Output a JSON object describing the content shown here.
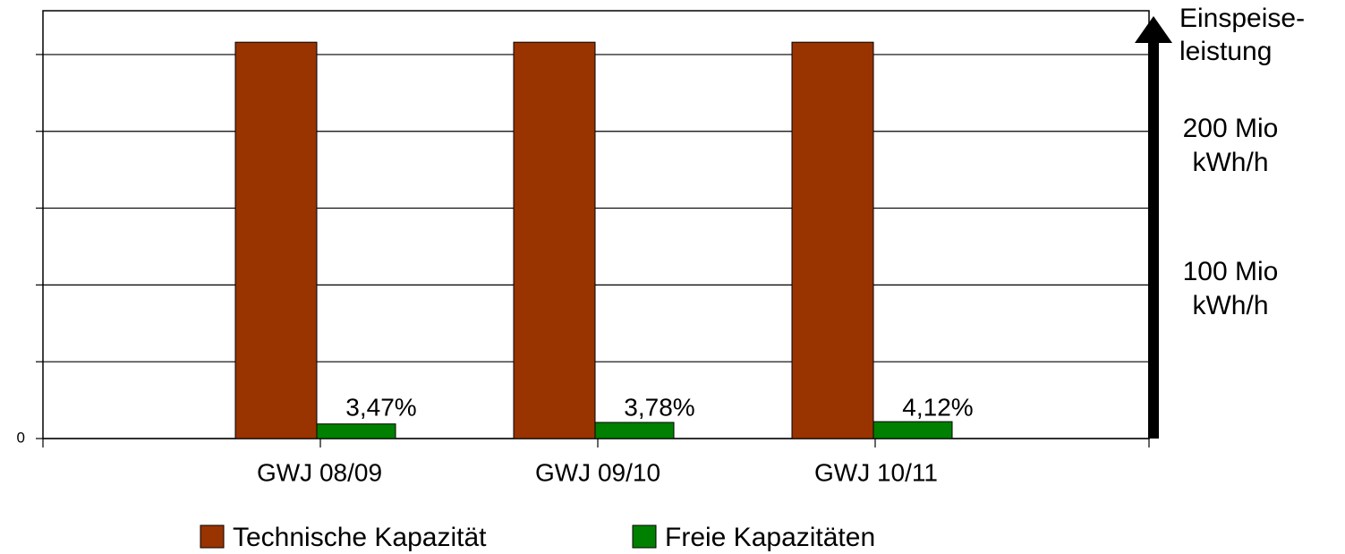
{
  "chart_data": {
    "type": "bar",
    "categories": [
      "GWJ 08/09",
      "GWJ 09/10",
      "GWJ 10/11"
    ],
    "series": [
      {
        "name": "Technische Kapazität",
        "color": "#993300",
        "values": [
          5.16,
          5.16,
          5.16
        ]
      },
      {
        "name": "Freie Kapazitäten",
        "color": "#008000",
        "values": [
          0.19,
          0.21,
          0.22
        ]
      }
    ],
    "percent_labels": [
      "3,47%",
      "3,78%",
      "4,12%"
    ],
    "ylim": [
      0,
      5.57
    ],
    "yticks": [
      0,
      {
        "value": 1,
        "label": null
      },
      {
        "value": 2,
        "label": null
      },
      {
        "value": 3,
        "label": null
      },
      {
        "value": 4,
        "label": null
      },
      {
        "value": 5,
        "label": null
      }
    ],
    "grid": true,
    "right_axis_title": [
      "Einspeise-",
      "leistung"
    ],
    "right_labels": [
      [
        "200 Mio",
        "kWh/h"
      ],
      [
        "100 Mio",
        "kWh/h"
      ]
    ]
  }
}
